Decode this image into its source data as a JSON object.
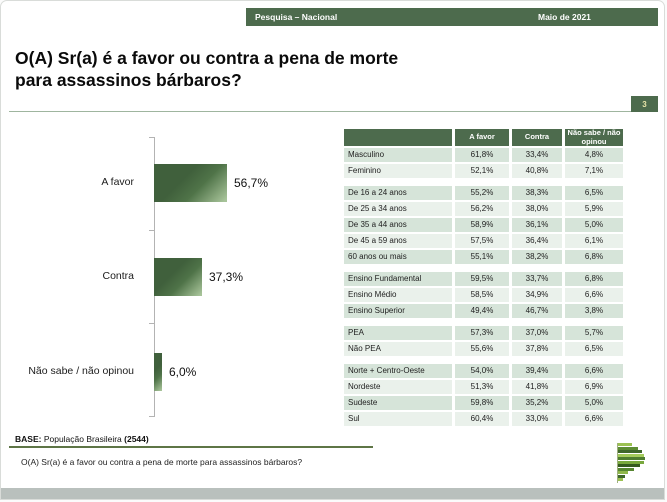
{
  "banner": {
    "left": "Pesquisa – Nacional",
    "right": "Maio de 2021"
  },
  "title": {
    "line1": "O(A) Sr(a) é a favor ou contra a pena de morte",
    "line2": "para assassinos bárbaros?"
  },
  "page_number": "3",
  "chart_data": {
    "type": "bar",
    "orientation": "horizontal",
    "categories": [
      "A favor",
      "Contra",
      "Não sabe / não opinou"
    ],
    "values": [
      56.7,
      37.3,
      6.0
    ],
    "value_labels": [
      "56,7%",
      "37,3%",
      "6,0%"
    ],
    "xlim": [
      0,
      100
    ],
    "grid": false,
    "legend": false
  },
  "table": {
    "columns": [
      "A favor",
      "Contra",
      "Não sabe / não opinou"
    ],
    "groups": [
      {
        "rows": [
          {
            "label": "Masculino",
            "values": [
              "61,8%",
              "33,4%",
              "4,8%"
            ]
          },
          {
            "label": "Feminino",
            "values": [
              "52,1%",
              "40,8%",
              "7,1%"
            ]
          }
        ]
      },
      {
        "rows": [
          {
            "label": "De 16 a 24 anos",
            "values": [
              "55,2%",
              "38,3%",
              "6,5%"
            ]
          },
          {
            "label": "De 25 a 34 anos",
            "values": [
              "56,2%",
              "38,0%",
              "5,9%"
            ]
          },
          {
            "label": "De 35 a 44 anos",
            "values": [
              "58,9%",
              "36,1%",
              "5,0%"
            ]
          },
          {
            "label": "De 45 a 59 anos",
            "values": [
              "57,5%",
              "36,4%",
              "6,1%"
            ]
          },
          {
            "label": "60 anos ou mais",
            "values": [
              "55,1%",
              "38,2%",
              "6,8%"
            ]
          }
        ]
      },
      {
        "rows": [
          {
            "label": "Ensino Fundamental",
            "values": [
              "59,5%",
              "33,7%",
              "6,8%"
            ]
          },
          {
            "label": "Ensino Médio",
            "values": [
              "58,5%",
              "34,9%",
              "6,6%"
            ]
          },
          {
            "label": "Ensino Superior",
            "values": [
              "49,4%",
              "46,7%",
              "3,8%"
            ]
          }
        ]
      },
      {
        "rows": [
          {
            "label": "PEA",
            "values": [
              "57,3%",
              "37,0%",
              "5,7%"
            ]
          },
          {
            "label": "Não PEA",
            "values": [
              "55,6%",
              "37,8%",
              "6,5%"
            ]
          }
        ]
      },
      {
        "rows": [
          {
            "label": "Norte + Centro-Oeste",
            "values": [
              "54,0%",
              "39,4%",
              "6,6%"
            ]
          },
          {
            "label": "Nordeste",
            "values": [
              "51,3%",
              "41,8%",
              "6,9%"
            ]
          },
          {
            "label": "Sudeste",
            "values": [
              "59,8%",
              "35,2%",
              "5,0%"
            ]
          },
          {
            "label": "Sul",
            "values": [
              "60,4%",
              "33,0%",
              "6,6%"
            ]
          }
        ]
      }
    ]
  },
  "base_note": {
    "prefix": "BASE:",
    "text": " População Brasileira ",
    "count": "(2544)"
  },
  "footer_question": "O(A) Sr(a) é a favor ou contra a pena de morte para assassinos bárbaros?",
  "colors": {
    "accent_green": "#4d6b4d",
    "table_row_dark": "#d6e4d9",
    "table_row_light": "#eaf1eb",
    "bar_gradient_dark": "#40603c",
    "bar_gradient_light": "#a7c399",
    "badge_text": "#e9e5a9",
    "base_rule_olive": "#5e7546"
  }
}
